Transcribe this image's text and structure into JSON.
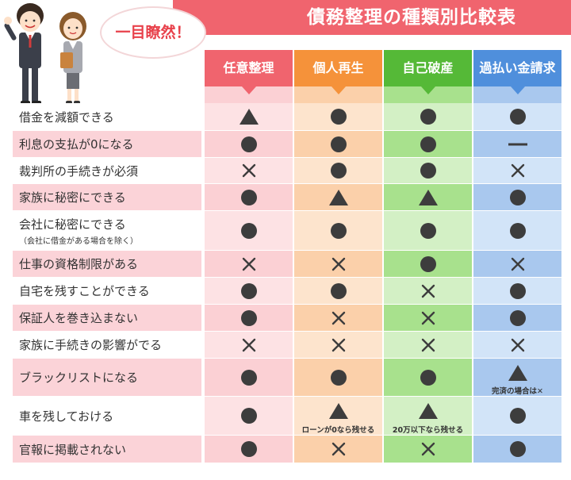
{
  "title": "債務整理の種類別比較表",
  "bubble": "一目瞭然！",
  "columns": [
    {
      "label": "任意整理",
      "head_color": "#f0646e",
      "light": "#fde2e4",
      "dark": "#fbd0d4"
    },
    {
      "label": "個人再生",
      "head_color": "#f5923a",
      "light": "#fde4cd",
      "dark": "#fbd0aa"
    },
    {
      "label": "自己破産",
      "head_color": "#55b937",
      "light": "#d3f0c5",
      "dark": "#a8e18d"
    },
    {
      "label": "過払い金請求",
      "head_color": "#4f8fdc",
      "light": "#d2e4f8",
      "dark": "#a9c8ee"
    }
  ],
  "rows": [
    {
      "label": "借金を減額できる",
      "sub": "",
      "values": [
        "triangle",
        "circle",
        "circle",
        "circle"
      ],
      "notes": [
        "",
        "",
        "",
        ""
      ]
    },
    {
      "label": "利息の支払が0になる",
      "sub": "",
      "values": [
        "circle",
        "circle",
        "circle",
        "dash"
      ],
      "notes": [
        "",
        "",
        "",
        ""
      ]
    },
    {
      "label": "裁判所の手続きが必須",
      "sub": "",
      "values": [
        "cross",
        "circle",
        "circle",
        "cross"
      ],
      "notes": [
        "",
        "",
        "",
        ""
      ]
    },
    {
      "label": "家族に秘密にできる",
      "sub": "",
      "values": [
        "circle",
        "triangle",
        "triangle",
        "circle"
      ],
      "notes": [
        "",
        "",
        "",
        ""
      ]
    },
    {
      "label": "会社に秘密にできる",
      "sub": "（会社に借金がある場合を除く）",
      "values": [
        "circle",
        "circle",
        "circle",
        "circle"
      ],
      "notes": [
        "",
        "",
        "",
        ""
      ]
    },
    {
      "label": "仕事の資格制限がある",
      "sub": "",
      "values": [
        "cross",
        "cross",
        "circle",
        "cross"
      ],
      "notes": [
        "",
        "",
        "",
        ""
      ]
    },
    {
      "label": "自宅を残すことができる",
      "sub": "",
      "values": [
        "circle",
        "circle",
        "cross",
        "circle"
      ],
      "notes": [
        "",
        "",
        "",
        ""
      ]
    },
    {
      "label": "保証人を巻き込まない",
      "sub": "",
      "values": [
        "circle",
        "cross",
        "cross",
        "circle"
      ],
      "notes": [
        "",
        "",
        "",
        ""
      ]
    },
    {
      "label": "家族に手続きの影響がでる",
      "sub": "",
      "values": [
        "cross",
        "cross",
        "cross",
        "cross"
      ],
      "notes": [
        "",
        "",
        "",
        ""
      ]
    },
    {
      "label": "ブラックリストになる",
      "sub": "",
      "values": [
        "circle",
        "circle",
        "circle",
        "triangle"
      ],
      "notes": [
        "",
        "",
        "",
        "完済の場合は✕"
      ]
    },
    {
      "label": "車を残しておける",
      "sub": "",
      "values": [
        "circle",
        "triangle",
        "triangle",
        "circle"
      ],
      "notes": [
        "",
        "ローンが0なら残せる",
        "20万以下なら残せる",
        ""
      ]
    },
    {
      "label": "官報に掲載されない",
      "sub": "",
      "values": [
        "circle",
        "cross",
        "cross",
        "circle"
      ],
      "notes": [
        "",
        "",
        "",
        ""
      ]
    }
  ]
}
